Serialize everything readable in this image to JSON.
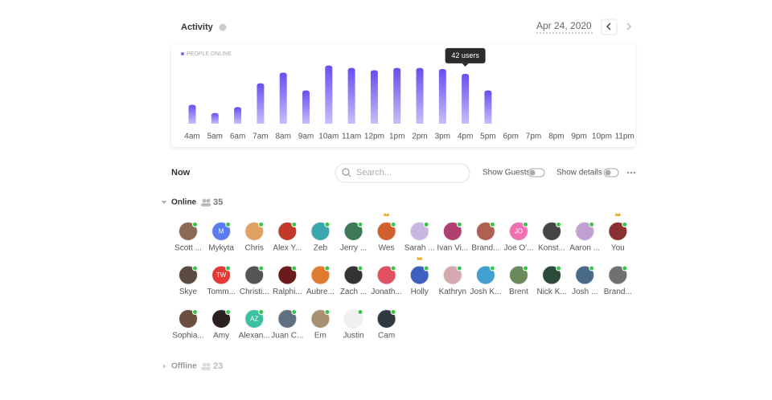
{
  "header": {
    "title": "Activity",
    "date": "Apr 24, 2020"
  },
  "chart_data": {
    "type": "bar",
    "categories": [
      "4am",
      "5am",
      "6am",
      "7am",
      "8am",
      "9am",
      "10am",
      "11am",
      "12pm",
      "1pm",
      "2pm",
      "3pm",
      "4pm",
      "5pm",
      "6pm",
      "7pm",
      "8pm",
      "9pm",
      "10pm",
      "11pm"
    ],
    "series": [
      {
        "name": "PEOPLE ONLINE",
        "color": "#7b68ee",
        "values": [
          16,
          9,
          14,
          34,
          43,
          28,
          49,
          47,
          45,
          47,
          47,
          46,
          42,
          28,
          null,
          null,
          null,
          null,
          null,
          null
        ],
        "value_labels": [
          null,
          null,
          null,
          null,
          null,
          null,
          null,
          null,
          null,
          null,
          null,
          null,
          "42 users",
          null,
          null,
          null,
          null,
          null,
          null,
          null
        ]
      }
    ]
  },
  "now": {
    "title": "Now",
    "search_placeholder": "Search...",
    "show_guests": "Show Guests",
    "show_details": "Show details"
  },
  "online": {
    "label": "Online",
    "count": 35,
    "people": [
      {
        "name": "Scott ...",
        "color": "#8a6a55"
      },
      {
        "name": "Mykyta",
        "initials": "M",
        "color": "#5b7cf0"
      },
      {
        "name": "Chris",
        "color": "#e0a060"
      },
      {
        "name": "Alex Y...",
        "color": "#c0392b"
      },
      {
        "name": "Zeb",
        "color": "#3aa7b0"
      },
      {
        "name": "Jerry ...",
        "color": "#3c7a55"
      },
      {
        "name": "Wes",
        "color": "#d06030",
        "crown": true
      },
      {
        "name": "Sarah ...",
        "color": "#c8b8e0"
      },
      {
        "name": "Ivan Vi...",
        "color": "#b04070"
      },
      {
        "name": "Brand...",
        "color": "#b06050"
      },
      {
        "name": "Joe O'...",
        "initials": "JO",
        "color": "#f06fb0"
      },
      {
        "name": "Konst...",
        "color": "#444444"
      },
      {
        "name": "Aaron ...",
        "color": "#c0a0d0"
      },
      {
        "name": "You",
        "color": "#8a3030",
        "crown": true
      },
      {
        "name": "Skye",
        "color": "#5a4a40"
      },
      {
        "name": "Tomm...",
        "initials": "TW",
        "color": "#e53935"
      },
      {
        "name": "Christi...",
        "color": "#555555"
      },
      {
        "name": "Ralphi...",
        "color": "#6a1a1a"
      },
      {
        "name": "Aubre...",
        "color": "#e07a30"
      },
      {
        "name": "Zach ...",
        "color": "#333333"
      },
      {
        "name": "Jonath...",
        "color": "#e05060"
      },
      {
        "name": "Holly",
        "color": "#4060c0",
        "crown": true
      },
      {
        "name": "Kathryn",
        "color": "#d8a8b0"
      },
      {
        "name": "Josh K...",
        "color": "#40a0d0"
      },
      {
        "name": "Brent",
        "color": "#6a8a5a"
      },
      {
        "name": "Nick K...",
        "color": "#2a4a3a"
      },
      {
        "name": "Josh ...",
        "color": "#4a6a8a"
      },
      {
        "name": "Brand...",
        "color": "#707070"
      },
      {
        "name": "Sophia...",
        "color": "#6a5040"
      },
      {
        "name": "Amy",
        "color": "#2a2020"
      },
      {
        "name": "Alexan...",
        "initials": "AZ",
        "color": "#3cc0a0"
      },
      {
        "name": "Juan C...",
        "color": "#607080"
      },
      {
        "name": "Em",
        "color": "#a89070"
      },
      {
        "name": "Justin",
        "color": "#f0f0f0"
      },
      {
        "name": "Cam",
        "color": "#303840"
      }
    ]
  },
  "offline": {
    "label": "Offline",
    "count": 23
  }
}
